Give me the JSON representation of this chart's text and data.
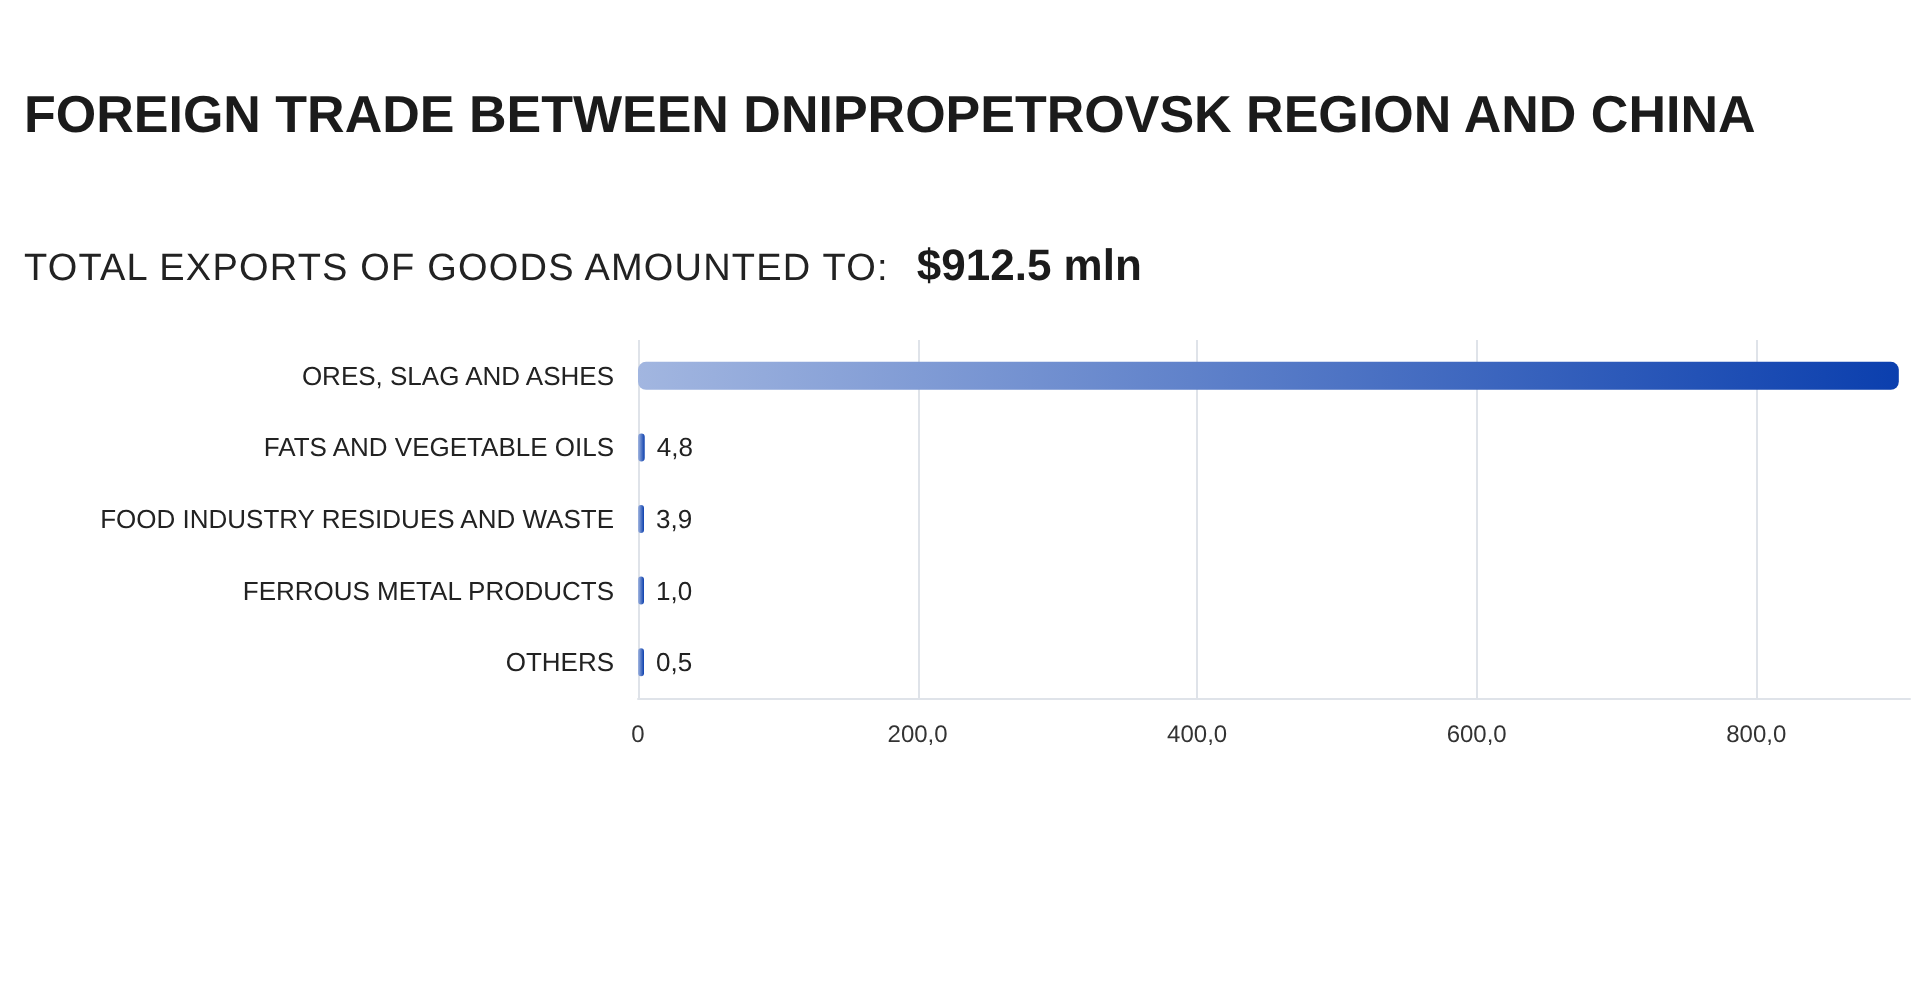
{
  "chart_data": {
    "type": "bar",
    "orientation": "horizontal",
    "title": "FOREIGN TRADE BETWEEN DNIPROPETROVSK REGION AND CHINA",
    "subtitle": "TOTAL EXPORTS OF GOODS AMOUNTED TO:",
    "annotations": [
      "$912.5 mln"
    ],
    "categories": [
      "ORES, SLAG AND ASHES",
      "FATS AND VEGETABLE OILS",
      "FOOD INDUSTRY RESIDUES AND WASTE",
      "FERROUS METAL PRODUCTS",
      "OTHERS"
    ],
    "values": [
      902,
      4.8,
      3.9,
      1.0,
      0.5
    ],
    "value_labels": [
      null,
      "4,8",
      "3,9",
      "1,0",
      "0,5"
    ],
    "color": "#0b3fae",
    "xlim": [
      0,
      910
    ],
    "xticks": [
      0,
      {
        "value": 200,
        "label": "200,0"
      },
      {
        "value": 400,
        "label": "400,0"
      },
      {
        "value": 600,
        "label": "600,0"
      },
      {
        "value": 800,
        "label": "800,0"
      }
    ],
    "grid": "x"
  }
}
